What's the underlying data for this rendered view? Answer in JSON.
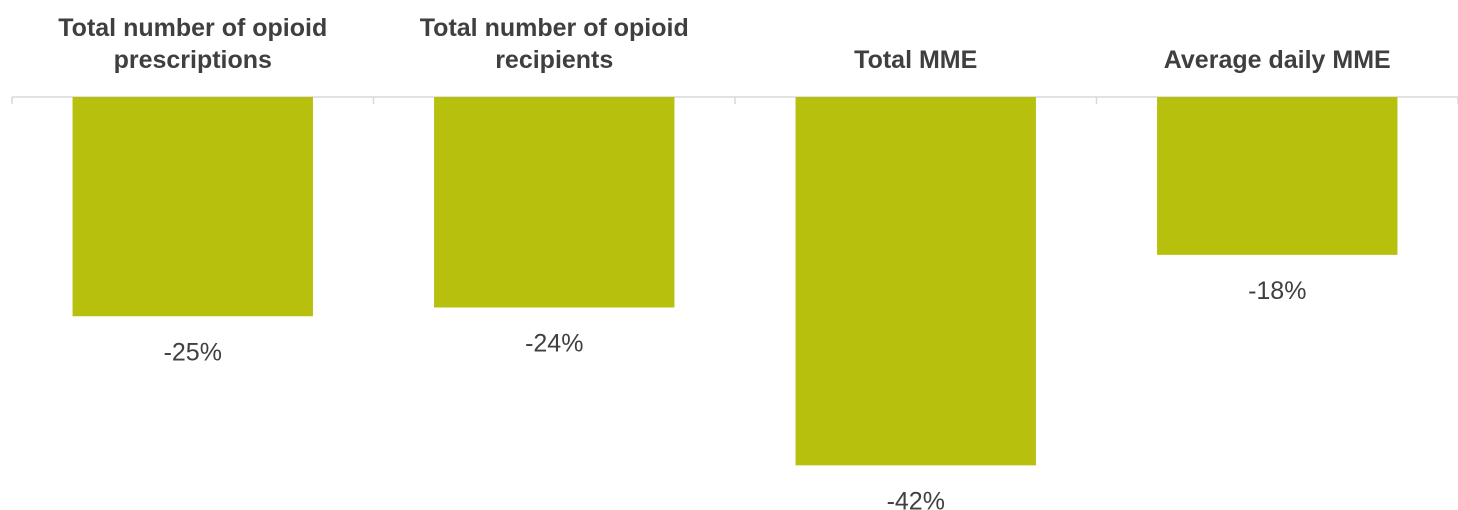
{
  "chart_data": {
    "type": "bar",
    "title": "",
    "xlabel": "",
    "ylabel": "",
    "categories": [
      [
        "Total number of opioid",
        "prescriptions"
      ],
      [
        "Total number of opioid",
        "recipients"
      ],
      [
        "Total  MME"
      ],
      [
        "Average daily MME"
      ]
    ],
    "series": [
      {
        "values": [
          -25,
          -24,
          -42,
          -18
        ]
      }
    ],
    "data_labels": [
      "-25%",
      "-24%",
      "-42%",
      "-18%"
    ],
    "value_unit": "%",
    "ylim": [
      -45,
      0
    ],
    "grid": false,
    "legend": "none",
    "category_axis_position": "top",
    "bar_color": "#b8c00e",
    "axis_color": "#d9d9d9",
    "label_color": "#3f3f3f"
  }
}
